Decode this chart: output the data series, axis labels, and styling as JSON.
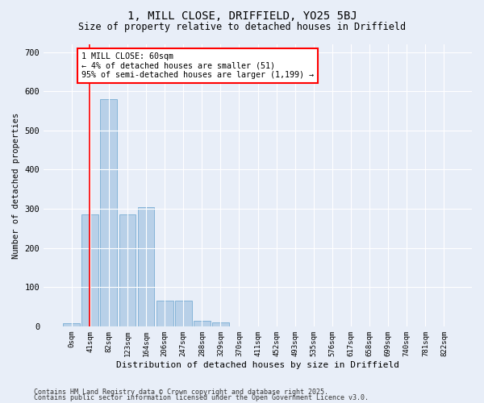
{
  "title_line1": "1, MILL CLOSE, DRIFFIELD, YO25 5BJ",
  "title_line2": "Size of property relative to detached houses in Driffield",
  "xlabel": "Distribution of detached houses by size in Driffield",
  "ylabel": "Number of detached properties",
  "bar_labels": [
    "0sqm",
    "41sqm",
    "82sqm",
    "123sqm",
    "164sqm",
    "206sqm",
    "247sqm",
    "288sqm",
    "329sqm",
    "370sqm",
    "411sqm",
    "452sqm",
    "493sqm",
    "535sqm",
    "576sqm",
    "617sqm",
    "658sqm",
    "699sqm",
    "740sqm",
    "781sqm",
    "822sqm"
  ],
  "bar_values": [
    8,
    285,
    580,
    285,
    305,
    65,
    65,
    15,
    10,
    0,
    0,
    0,
    0,
    0,
    0,
    0,
    0,
    0,
    0,
    0,
    0
  ],
  "bar_color": "#b8d0e8",
  "bar_edge_color": "#7aadd4",
  "background_color": "#e8eef8",
  "grid_color": "#ffffff",
  "annotation_box_text": "1 MILL CLOSE: 60sqm\n← 4% of detached houses are smaller (51)\n95% of semi-detached houses are larger (1,199) →",
  "ylim": [
    0,
    720
  ],
  "yticks": [
    0,
    100,
    200,
    300,
    400,
    500,
    600,
    700
  ],
  "footer_line1": "Contains HM Land Registry data © Crown copyright and database right 2025.",
  "footer_line2": "Contains public sector information licensed under the Open Government Licence v3.0.",
  "fig_bg": "#e8eef8"
}
